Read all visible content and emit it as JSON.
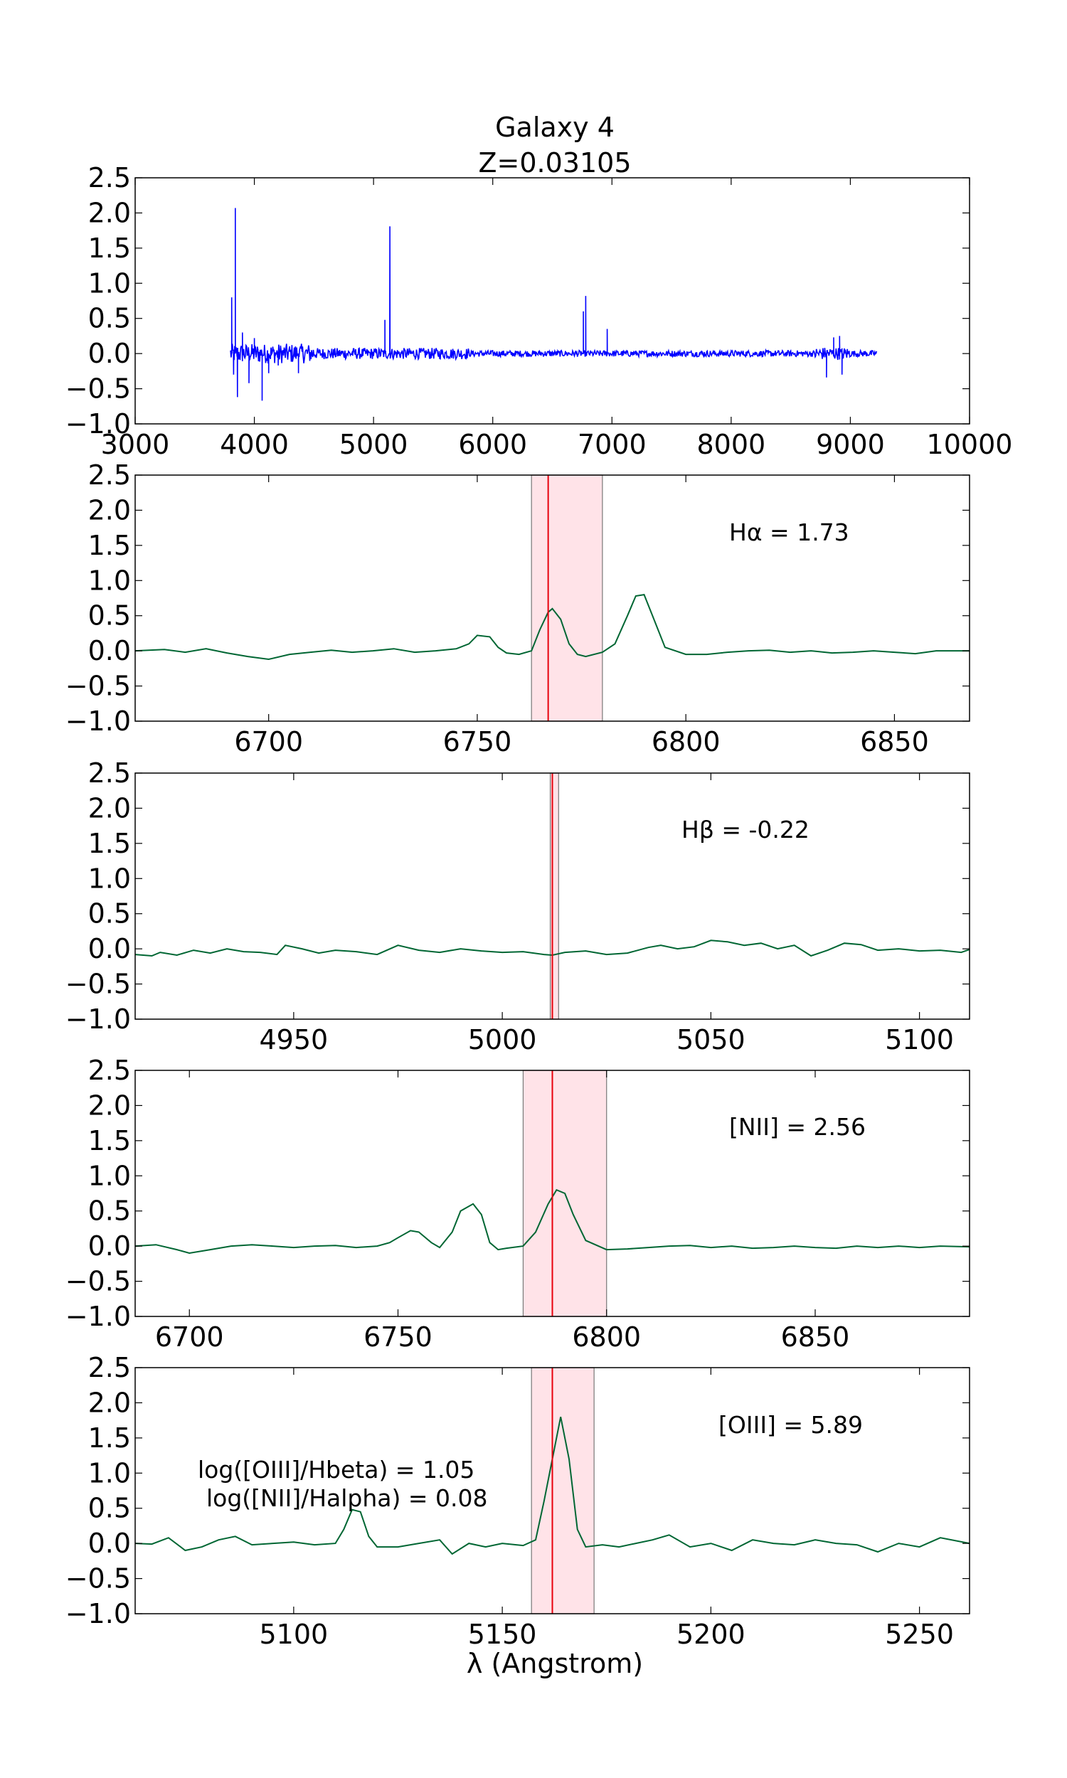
{
  "figure": {
    "title_line1": "Galaxy 4",
    "title_line2": "Z=0.03105",
    "xlabel": "λ (Angstrom)"
  },
  "colors": {
    "spectrum_full": "#0000ff",
    "spectrum_zoom": "#006633",
    "line_marker": "#e8000b",
    "band_fill": "#ffc0cb"
  },
  "annotations": {
    "ratio_oiii_hbeta": "log([OIII]/Hbeta) = 1.05",
    "ratio_nii_halpha": "log([NII]/Halpha) = 0.08"
  },
  "chart_data": [
    {
      "type": "line",
      "panel": "full spectrum",
      "xlim": [
        3000,
        10000
      ],
      "ylim": [
        -1.0,
        2.5
      ],
      "xticks": [
        3000,
        4000,
        5000,
        6000,
        7000,
        8000,
        9000,
        10000
      ],
      "yticks": [
        "2.5",
        "2.0",
        "1.5",
        "1.0",
        "0.5",
        "0.0",
        "−0.5",
        "−1.0"
      ],
      "x_range": [
        3800,
        9220
      ],
      "peaks": [
        {
          "x": 3810,
          "y": 0.8
        },
        {
          "x": 3826,
          "y": -0.3
        },
        {
          "x": 3840,
          "y": 2.07
        },
        {
          "x": 3858,
          "y": -0.62
        },
        {
          "x": 3900,
          "y": 0.3
        },
        {
          "x": 3955,
          "y": -0.42
        },
        {
          "x": 4000,
          "y": 0.22
        },
        {
          "x": 4065,
          "y": -0.67
        },
        {
          "x": 4120,
          "y": -0.28
        },
        {
          "x": 4200,
          "y": -0.17
        },
        {
          "x": 4370,
          "y": -0.28
        },
        {
          "x": 5095,
          "y": 0.48
        },
        {
          "x": 5137,
          "y": 1.81
        },
        {
          "x": 6760,
          "y": 0.6
        },
        {
          "x": 6780,
          "y": 0.82
        },
        {
          "x": 6960,
          "y": 0.35
        },
        {
          "x": 8800,
          "y": -0.34
        },
        {
          "x": 8860,
          "y": 0.23
        },
        {
          "x": 8910,
          "y": 0.25
        },
        {
          "x": 8930,
          "y": -0.3
        }
      ]
    },
    {
      "type": "line",
      "panel": "Halpha",
      "label": "Hα = 1.73",
      "xlim": [
        6668,
        6868
      ],
      "ylim": [
        -1.0,
        2.5
      ],
      "xticks": [
        6700,
        6750,
        6800,
        6850
      ],
      "yticks": [
        "2.5",
        "2.0",
        "1.5",
        "1.0",
        "0.5",
        "0.0",
        "−0.5",
        "−1.0"
      ],
      "line_center": 6767,
      "band": [
        6763,
        6780
      ],
      "x": [
        6668,
        6675,
        6680,
        6685,
        6690,
        6695,
        6700,
        6705,
        6710,
        6715,
        6720,
        6725,
        6730,
        6735,
        6740,
        6745,
        6748,
        6750,
        6753,
        6755,
        6757,
        6760,
        6763,
        6765,
        6767,
        6768,
        6770,
        6772,
        6774,
        6776,
        6780,
        6783,
        6786,
        6788,
        6790,
        6792,
        6795,
        6800,
        6805,
        6810,
        6815,
        6820,
        6825,
        6830,
        6835,
        6840,
        6845,
        6850,
        6855,
        6860,
        6868
      ],
      "y": [
        0.0,
        0.02,
        -0.02,
        0.03,
        -0.03,
        -0.08,
        -0.12,
        -0.05,
        -0.02,
        0.01,
        -0.02,
        0.0,
        0.03,
        -0.02,
        0.0,
        0.03,
        0.1,
        0.22,
        0.2,
        0.05,
        -0.03,
        -0.05,
        0.0,
        0.3,
        0.55,
        0.6,
        0.45,
        0.1,
        -0.05,
        -0.08,
        -0.02,
        0.1,
        0.5,
        0.78,
        0.8,
        0.5,
        0.05,
        -0.05,
        -0.05,
        -0.02,
        0.0,
        0.01,
        -0.02,
        0.0,
        -0.03,
        -0.02,
        0.0,
        -0.02,
        -0.04,
        0.0,
        0.0
      ]
    },
    {
      "type": "line",
      "panel": "Hbeta",
      "label": "Hβ = -0.22",
      "xlim": [
        4912,
        5112
      ],
      "ylim": [
        -1.0,
        2.5
      ],
      "xticks": [
        4950,
        5000,
        5050,
        5100
      ],
      "yticks": [
        "2.5",
        "2.0",
        "1.5",
        "1.0",
        "0.5",
        "0.0",
        "−0.5",
        "−1.0"
      ],
      "line_center": 5012,
      "band": [
        5011.5,
        5013.5
      ],
      "x": [
        4912,
        4916,
        4918,
        4922,
        4926,
        4930,
        4934,
        4938,
        4942,
        4946,
        4948,
        4952,
        4956,
        4960,
        4965,
        4970,
        4975,
        4980,
        4985,
        4990,
        4995,
        5000,
        5005,
        5010,
        5012,
        5015,
        5020,
        5025,
        5030,
        5035,
        5038,
        5042,
        5046,
        5050,
        5054,
        5058,
        5062,
        5066,
        5070,
        5074,
        5078,
        5082,
        5086,
        5090,
        5095,
        5100,
        5105,
        5110,
        5112
      ],
      "y": [
        -0.08,
        -0.1,
        -0.05,
        -0.09,
        -0.02,
        -0.06,
        0.0,
        -0.04,
        -0.05,
        -0.08,
        0.05,
        0.0,
        -0.06,
        -0.02,
        -0.04,
        -0.08,
        0.05,
        -0.02,
        -0.05,
        0.0,
        -0.03,
        -0.05,
        -0.04,
        -0.08,
        -0.09,
        -0.05,
        -0.03,
        -0.08,
        -0.06,
        0.02,
        0.05,
        0.0,
        0.03,
        0.12,
        0.1,
        0.05,
        0.08,
        0.0,
        0.05,
        -0.1,
        -0.02,
        0.08,
        0.06,
        -0.02,
        0.0,
        -0.03,
        -0.02,
        -0.05,
        -0.01
      ]
    },
    {
      "type": "line",
      "panel": "NII",
      "label": "[NII] = 2.56",
      "xlim": [
        6687,
        6887
      ],
      "ylim": [
        -1.0,
        2.5
      ],
      "xticks": [
        6700,
        6750,
        6800,
        6850
      ],
      "yticks": [
        "2.5",
        "2.0",
        "1.5",
        "1.0",
        "0.5",
        "0.0",
        "−0.5",
        "−1.0"
      ],
      "line_center": 6787,
      "band": [
        6780,
        6800
      ],
      "x": [
        6687,
        6692,
        6697,
        6700,
        6705,
        6710,
        6715,
        6720,
        6725,
        6730,
        6735,
        6740,
        6745,
        6748,
        6750,
        6753,
        6755,
        6758,
        6760,
        6763,
        6765,
        6768,
        6770,
        6772,
        6774,
        6776,
        6780,
        6783,
        6786,
        6788,
        6790,
        6792,
        6795,
        6800,
        6805,
        6810,
        6815,
        6820,
        6825,
        6830,
        6835,
        6840,
        6845,
        6850,
        6855,
        6860,
        6865,
        6870,
        6875,
        6880,
        6887
      ],
      "y": [
        0.0,
        0.02,
        -0.05,
        -0.1,
        -0.05,
        0.0,
        0.02,
        0.0,
        -0.02,
        0.0,
        0.01,
        -0.02,
        0.0,
        0.05,
        0.12,
        0.22,
        0.2,
        0.05,
        -0.02,
        0.2,
        0.5,
        0.6,
        0.45,
        0.05,
        -0.05,
        -0.03,
        0.0,
        0.2,
        0.6,
        0.8,
        0.75,
        0.45,
        0.08,
        -0.05,
        -0.04,
        -0.02,
        0.0,
        0.01,
        -0.02,
        0.0,
        -0.03,
        -0.02,
        0.0,
        -0.02,
        -0.03,
        0.0,
        -0.02,
        0.0,
        -0.02,
        0.0,
        -0.01
      ]
    },
    {
      "type": "line",
      "panel": "OIII",
      "label": "[OIII] = 5.89",
      "xlim": [
        5062,
        5262
      ],
      "ylim": [
        -1.0,
        2.5
      ],
      "xticks": [
        5100,
        5150,
        5200,
        5250
      ],
      "yticks": [
        "2.5",
        "2.0",
        "1.5",
        "1.0",
        "0.5",
        "0.0",
        "−0.5",
        "−1.0"
      ],
      "line_center": 5162,
      "band": [
        5157,
        5172
      ],
      "x": [
        5062,
        5066,
        5070,
        5074,
        5078,
        5082,
        5086,
        5090,
        5095,
        5100,
        5105,
        5110,
        5112,
        5114,
        5116,
        5118,
        5120,
        5125,
        5130,
        5135,
        5138,
        5142,
        5146,
        5150,
        5155,
        5158,
        5160,
        5162,
        5164,
        5166,
        5168,
        5170,
        5174,
        5178,
        5182,
        5186,
        5190,
        5195,
        5200,
        5205,
        5210,
        5215,
        5220,
        5225,
        5230,
        5235,
        5240,
        5245,
        5250,
        5255,
        5262
      ],
      "y": [
        0.0,
        -0.01,
        0.08,
        -0.1,
        -0.05,
        0.05,
        0.1,
        -0.02,
        0.0,
        0.02,
        -0.02,
        0.0,
        0.2,
        0.48,
        0.45,
        0.1,
        -0.05,
        -0.05,
        0.0,
        0.05,
        -0.15,
        0.0,
        -0.05,
        0.0,
        -0.03,
        0.05,
        0.6,
        1.2,
        1.8,
        1.2,
        0.2,
        -0.05,
        -0.02,
        -0.05,
        0.0,
        0.05,
        0.12,
        -0.05,
        0.0,
        -0.1,
        0.05,
        0.0,
        -0.02,
        0.05,
        0.0,
        -0.02,
        -0.12,
        0.0,
        -0.05,
        0.08,
        0.0
      ]
    }
  ]
}
